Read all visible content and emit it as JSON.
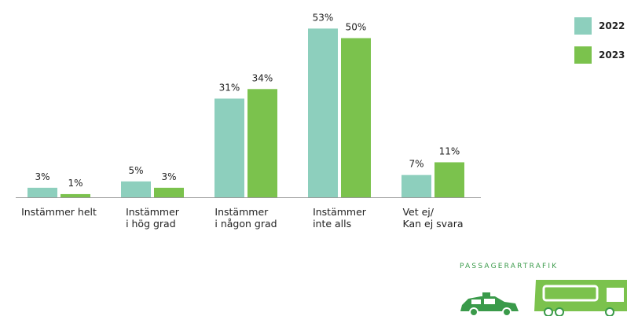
{
  "chart_data": {
    "type": "bar",
    "categories": [
      "Instämmer helt",
      "Instämmer\ni hög grad",
      "Instämmer\ni någon grad",
      "Instämmer\ninte alls",
      "Vet ej/\nKan ej svara"
    ],
    "series": [
      {
        "name": "2022",
        "color": "#8dcfbd",
        "values": [
          3,
          5,
          31,
          53,
          7
        ],
        "value_labels": [
          "3%",
          "5%",
          "31%",
          "53%",
          "7%"
        ]
      },
      {
        "name": "2023",
        "color": "#7bc24d",
        "values": [
          1,
          3,
          34,
          50,
          11
        ],
        "value_labels": [
          "1%",
          "3%",
          "34%",
          "50%",
          "11%"
        ]
      }
    ],
    "footer": "PASSAGERARTRAFIK"
  }
}
